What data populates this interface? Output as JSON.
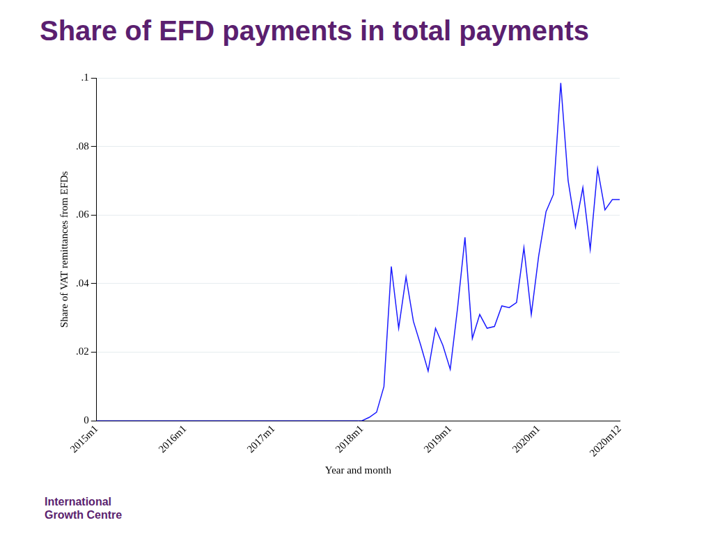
{
  "chart_data": {
    "type": "line",
    "title": "Share of EFD payments in total payments",
    "x_label": "Year and month",
    "y_label": "Share of VAT remittances from EFDs",
    "footer": "International Growth Centre",
    "categories": [
      "2015m1",
      null,
      null,
      null,
      null,
      null,
      null,
      null,
      null,
      null,
      null,
      null,
      "2016m1",
      null,
      null,
      null,
      null,
      null,
      null,
      null,
      null,
      null,
      null,
      null,
      "2017m1",
      null,
      null,
      null,
      null,
      null,
      null,
      null,
      null,
      null,
      null,
      null,
      "2018m1",
      null,
      null,
      null,
      null,
      null,
      null,
      null,
      null,
      null,
      null,
      null,
      "2019m1",
      null,
      null,
      null,
      null,
      null,
      null,
      null,
      null,
      null,
      null,
      null,
      "2020m1",
      null,
      null,
      null,
      null,
      null,
      null,
      null,
      null,
      null,
      null,
      "2020m12"
    ],
    "values": [
      0,
      0,
      0,
      0,
      0,
      0,
      0,
      0,
      0,
      0,
      0,
      0,
      0,
      0,
      0,
      0,
      0,
      0,
      0,
      0,
      0,
      0,
      0,
      0,
      0,
      0,
      0,
      0,
      0,
      0,
      0,
      0,
      0,
      0,
      0,
      0,
      0,
      0.001,
      0.0025,
      0.01,
      0.045,
      0.027,
      0.042,
      0.029,
      0.022,
      0.0145,
      0.027,
      0.022,
      0.015,
      0.033,
      0.0535,
      0.024,
      0.031,
      0.027,
      0.0275,
      0.0335,
      0.033,
      0.0345,
      0.0505,
      0.031,
      0.048,
      0.061,
      0.066,
      0.0985,
      0.07,
      0.0565,
      0.068,
      0.05,
      0.0735,
      0.0615,
      0.0645,
      0.0645
    ],
    "color": "#1a1aff",
    "ylim": [
      0,
      0.1
    ],
    "yticks": [
      0,
      {
        "value": 0.02,
        "label": ".02"
      },
      {
        "value": 0.04,
        "label": ".04"
      },
      {
        "value": 0.06,
        "label": ".06"
      },
      {
        "value": 0.08,
        "label": ".08"
      },
      {
        "value": 0.1,
        "label": ".1"
      }
    ],
    "grid": true
  }
}
